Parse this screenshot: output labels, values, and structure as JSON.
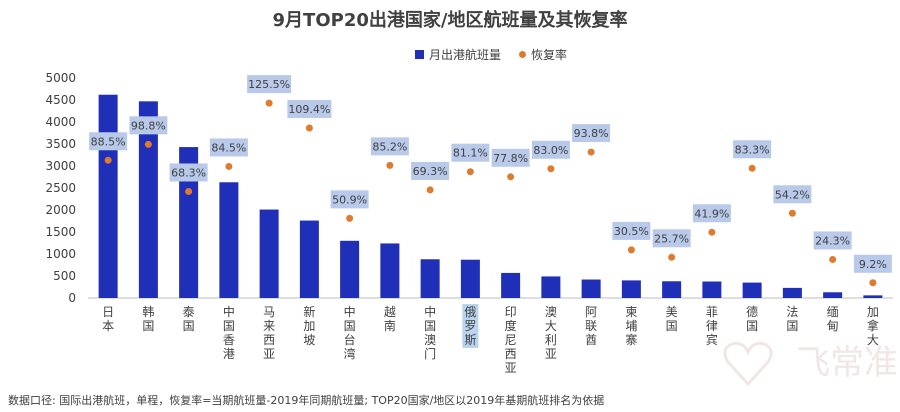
{
  "chart_data": {
    "type": "bar",
    "title": "9月TOP20出港国家/地区航班量及其恢复率",
    "legend": [
      "月出港航班量",
      "恢复率"
    ],
    "legend_position": "top",
    "categories": [
      "日本",
      "韩国",
      "泰国",
      "中国香港",
      "马来西亚",
      "新加坡",
      "中国台湾",
      "越南",
      "中国澳门",
      "俄罗斯",
      "印度尼西亚",
      "澳大利亚",
      "阿联酋",
      "柬埔寨",
      "美国",
      "菲律宾",
      "德国",
      "法国",
      "缅甸",
      "加拿大"
    ],
    "yticks": [
      0,
      500,
      1000,
      1500,
      2000,
      2500,
      3000,
      3500,
      4000,
      4500,
      5000
    ],
    "ylim": [
      0,
      5000
    ],
    "grid": false,
    "series": [
      {
        "name": "月出港航班量",
        "type": "bar",
        "color": "#1f2fb8",
        "values": [
          4620,
          4470,
          3430,
          2630,
          2010,
          1760,
          1300,
          1240,
          880,
          870,
          570,
          490,
          420,
          400,
          380,
          375,
          350,
          230,
          130,
          60
        ]
      },
      {
        "name": "恢复率",
        "type": "scatter",
        "color": "#e07b2e",
        "labels": [
          "88.5%",
          "98.8%",
          "68.3%",
          "84.5%",
          "125.5%",
          "109.4%",
          "50.9%",
          "85.2%",
          "69.3%",
          "81.1%",
          "77.8%",
          "83.0%",
          "93.8%",
          "30.5%",
          "25.7%",
          "41.9%",
          "83.3%",
          "54.2%",
          "24.3%",
          "9.2%"
        ]
      }
    ]
  },
  "footnote": "数据口径: 国际出港航班，单程，恢复率=当期航班量-2019年同期航班量; TOP20国家/地区以2019年基期航班排名为依据",
  "watermark": "飞常准"
}
